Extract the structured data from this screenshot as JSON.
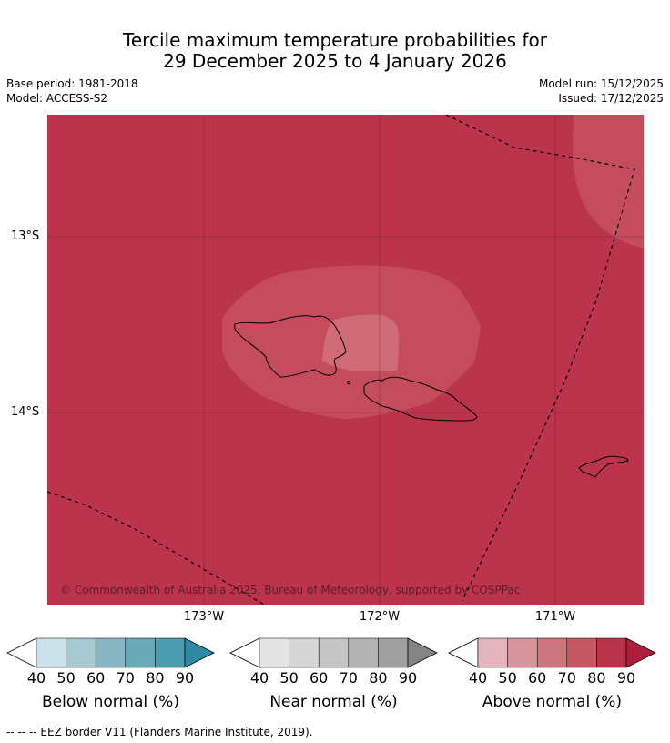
{
  "title": {
    "line1": "Tercile maximum temperature probabilities for",
    "line2": "29 December 2025 to 4 January 2026"
  },
  "meta": {
    "base_period": "Base period: 1981-2018",
    "model": "Model: ACCESS-S2",
    "model_run": "Model run: 15/12/2025",
    "issued": "Issued: 17/12/2025"
  },
  "map": {
    "y_ticks": [
      "13°S",
      "14°S"
    ],
    "x_ticks": [
      "173°W",
      "172°W",
      "171°W"
    ],
    "copyright": "© Commonwealth of Australia 2025, Bureau of Meteorology, supported by COSPPac",
    "colors": {
      "above_80": "#bc344b",
      "above_70": "#c44c5c",
      "above_60": "#cf6c77",
      "coast": "#000000"
    }
  },
  "colorbars": [
    {
      "label": "Below normal (%)",
      "ticks": [
        "40",
        "50",
        "60",
        "70",
        "80",
        "90"
      ],
      "colors": [
        "#ffffff",
        "#cbe2e8",
        "#a6c8ce",
        "#88b6c2",
        "#6aaab8",
        "#4a9cae",
        "#2e8aa3"
      ]
    },
    {
      "label": "Near normal (%)",
      "ticks": [
        "40",
        "50",
        "60",
        "70",
        "80",
        "90"
      ],
      "colors": [
        "#ffffff",
        "#e4e4e4",
        "#d6d6d6",
        "#c5c5c5",
        "#b3b3b3",
        "#9f9f9f",
        "#858585"
      ]
    },
    {
      "label": "Above normal (%)",
      "ticks": [
        "40",
        "50",
        "60",
        "70",
        "80",
        "90"
      ],
      "colors": [
        "#ffffff",
        "#e3b6bd",
        "#d6949d",
        "#cc7780",
        "#c4575f",
        "#ba334a",
        "#ad1e3b"
      ]
    }
  ],
  "footer": "--  --  -- EEZ border V11 (Flanders Marine Institute, 2019)."
}
